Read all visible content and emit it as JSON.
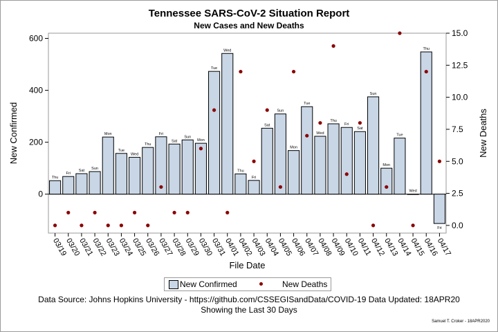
{
  "title": "Tennessee SARS-CoV-2 Situation Report",
  "subtitle": "New Cases and New Deaths",
  "footnote1": "Data Source: Johns Hopkins University - https://github.com/CSSEGISandData/COVID-19 Data Updated: 18APR20",
  "footnote2": "Showing the Last 30 Days",
  "credit": "Samuel T. Croker - 18APR2020",
  "legend": {
    "bar_label": "New Confirmed",
    "dot_label": "New Deaths"
  },
  "colors": {
    "bar_fill": "#c8d6e6",
    "bar_stroke": "#000000",
    "dot": "#8b0000"
  },
  "chart_data": {
    "type": "bar",
    "xlabel": "File Date",
    "ylabel": "New Confirmed",
    "y2label": "New Deaths",
    "ylim": [
      -150,
      620
    ],
    "y2lim": [
      -0.6,
      15.0
    ],
    "yticks": [
      0,
      200,
      400,
      600
    ],
    "y2ticks": [
      0.0,
      2.5,
      5.0,
      7.5,
      10.0,
      12.5,
      15.0
    ],
    "y2tick_labels": [
      "0.0",
      "2.5",
      "5.0",
      "7.5",
      "10.0",
      "12.5",
      "15.0"
    ],
    "categories": [
      "03/19",
      "03/20",
      "03/21",
      "03/22",
      "03/23",
      "03/24",
      "03/25",
      "03/26",
      "03/27",
      "03/28",
      "03/29",
      "03/30",
      "03/31",
      "04/01",
      "04/02",
      "04/03",
      "04/04",
      "04/05",
      "04/06",
      "04/07",
      "04/08",
      "04/09",
      "04/10",
      "04/11",
      "04/12",
      "04/13",
      "04/14",
      "04/15",
      "04/16",
      "04/17"
    ],
    "day_labels": [
      "Thu",
      "Fri",
      "Sat",
      "Sun",
      "Mon",
      "Tue",
      "Wed",
      "Thu",
      "Fri",
      "Sat",
      "Sun",
      "Mon",
      "Tue",
      "Wed",
      "Thu",
      "Fri",
      "Sat",
      "Sun",
      "Mon",
      "Tue",
      "Wed",
      "Thu",
      "Fri",
      "Sat",
      "Sun",
      "Mon",
      "Tue",
      "Wed",
      "Thu",
      "Fri"
    ],
    "series": [
      {
        "name": "New Confirmed",
        "axis": "left",
        "kind": "bar",
        "values": [
          52,
          68,
          79,
          87,
          220,
          157,
          142,
          180,
          221,
          193,
          209,
          196,
          473,
          542,
          78,
          53,
          254,
          309,
          168,
          337,
          223,
          271,
          257,
          241,
          375,
          100,
          216,
          0,
          548,
          -113
        ]
      },
      {
        "name": "New Deaths",
        "axis": "right",
        "kind": "scatter",
        "values": [
          0,
          1,
          0,
          1,
          0,
          0,
          1,
          0,
          3,
          1,
          1,
          6,
          9,
          1,
          12,
          5,
          9,
          3,
          12,
          7,
          8,
          14,
          4,
          8,
          0,
          3,
          15,
          0,
          12,
          5
        ]
      }
    ]
  }
}
